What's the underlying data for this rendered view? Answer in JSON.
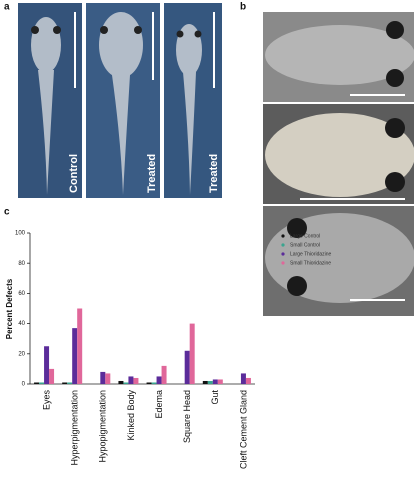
{
  "panel_labels": [
    "a",
    "b",
    "c"
  ],
  "photo_labels": [
    "Control",
    "Treated",
    "Treated"
  ],
  "chart_data": {
    "type": "bar",
    "ylabel": "Percent Defects",
    "categories": [
      "Eyes",
      "Hyperpigmentation",
      "Hypopigmentation",
      "Kinked Body",
      "Edema",
      "Square Head",
      "Gut",
      "Cleft Cement Gland"
    ],
    "series": [
      {
        "name": "Large Control",
        "color": "#111111",
        "values": [
          1,
          1,
          0,
          2,
          1,
          0,
          2,
          0
        ]
      },
      {
        "name": "Small Control",
        "color": "#3aa58f",
        "values": [
          1,
          1,
          0,
          1,
          1,
          0,
          2,
          0
        ]
      },
      {
        "name": "Large Thioridazine",
        "color": "#5b2c9a",
        "values": [
          25,
          37,
          8,
          5,
          5,
          22,
          3,
          7
        ]
      },
      {
        "name": "Small Thioridazine",
        "color": "#e0679a",
        "values": [
          10,
          50,
          7,
          4,
          12,
          40,
          3,
          4
        ]
      }
    ],
    "ylim": [
      0,
      100
    ],
    "yticks": [
      0,
      20,
      40,
      60,
      80,
      100
    ]
  }
}
